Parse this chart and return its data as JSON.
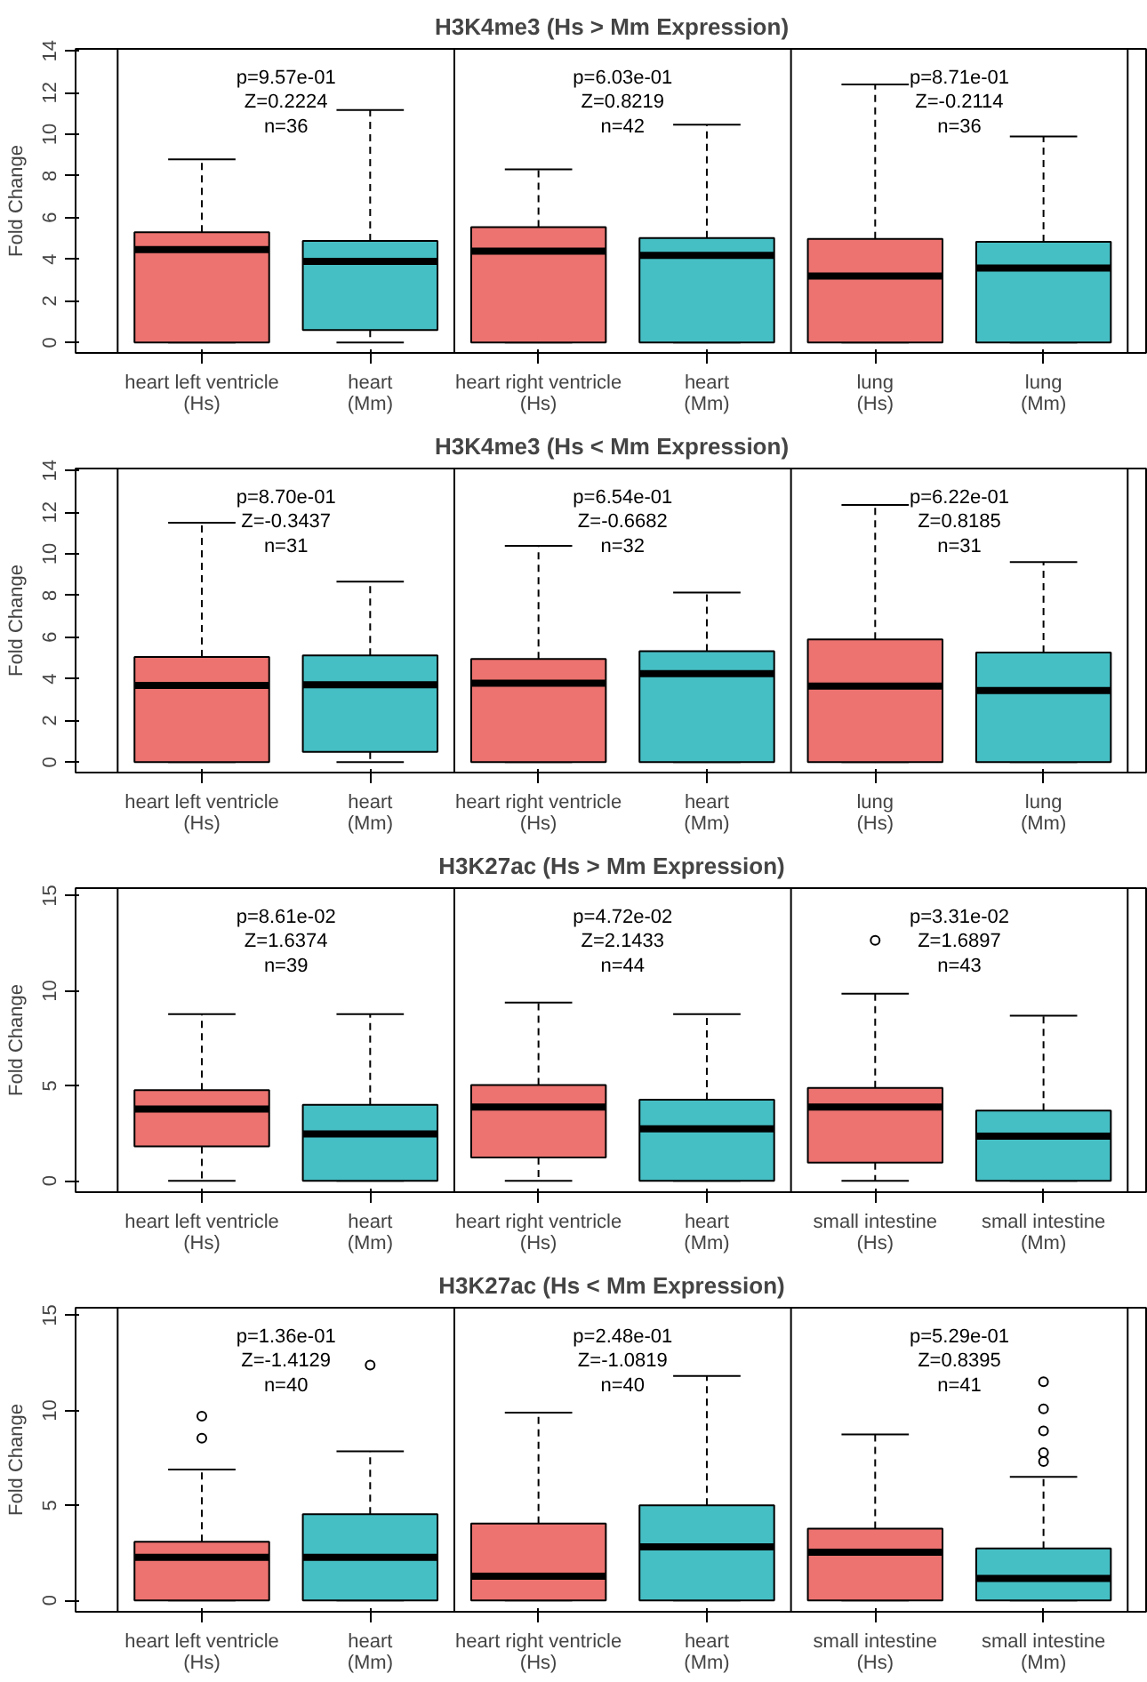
{
  "chart_data": [
    {
      "type": "box",
      "title": "H3K4me3 (Hs > Mm Expression)",
      "ylabel": "Fold Change",
      "ylim": [
        -0.5,
        14.1
      ],
      "yticks": [
        0,
        2,
        4,
        6,
        8,
        10,
        12,
        14
      ],
      "grid": false,
      "categories": [
        "heart left ventricle\n(Hs)",
        "heart\n(Mm)",
        "heart right ventricle\n(Hs)",
        "heart\n(Mm)",
        "lung\n(Hs)",
        "lung\n(Mm)"
      ],
      "colors": [
        "#ec7370",
        "#46bfc4",
        "#ec7370",
        "#46bfc4",
        "#ec7370",
        "#46bfc4"
      ],
      "boxes": [
        {
          "low": 0,
          "q1": 0,
          "median": 4.46,
          "q3": 5.3,
          "high": 8.8
        },
        {
          "low": 0,
          "q1": 0.6,
          "median": 3.9,
          "q3": 4.88,
          "high": 11.16
        },
        {
          "low": 0,
          "q1": 0,
          "median": 4.39,
          "q3": 5.54,
          "high": 8.32
        },
        {
          "low": 0,
          "q1": 0,
          "median": 4.18,
          "q3": 5.02,
          "high": 10.46
        },
        {
          "low": 0,
          "q1": 0,
          "median": 3.19,
          "q3": 4.98,
          "high": 12.39
        },
        {
          "low": 0,
          "q1": 0,
          "median": 3.58,
          "q3": 4.84,
          "high": 9.89
        }
      ],
      "annotations": [
        "p=9.57e-01\nZ=0.2224\nn=36",
        "p=6.03e-01\nZ=0.8219\nn=42",
        "p=8.71e-01\nZ=-0.2114\nn=36"
      ]
    },
    {
      "type": "box",
      "title": "H3K4me3 (Hs < Mm Expression)",
      "ylabel": "Fold Change",
      "ylim": [
        -0.5,
        14.1
      ],
      "yticks": [
        0,
        2,
        4,
        6,
        8,
        10,
        12,
        14
      ],
      "grid": false,
      "categories": [
        "heart left ventricle\n(Hs)",
        "heart\n(Mm)",
        "heart right ventricle\n(Hs)",
        "heart\n(Mm)",
        "lung\n(Hs)",
        "lung\n(Mm)"
      ],
      "colors": [
        "#ec7370",
        "#46bfc4",
        "#ec7370",
        "#46bfc4",
        "#ec7370",
        "#46bfc4"
      ],
      "boxes": [
        {
          "low": 0,
          "q1": 0,
          "median": 3.68,
          "q3": 5.05,
          "high": 11.5
        },
        {
          "low": 0,
          "q1": 0.49,
          "median": 3.72,
          "q3": 5.12,
          "high": 8.67
        },
        {
          "low": 0,
          "q1": 0,
          "median": 3.79,
          "q3": 4.95,
          "high": 10.39
        },
        {
          "low": 0,
          "q1": 0,
          "median": 4.25,
          "q3": 5.33,
          "high": 8.14
        },
        {
          "low": 0,
          "q1": 0,
          "median": 3.65,
          "q3": 5.89,
          "high": 12.35
        },
        {
          "low": 0,
          "q1": 0,
          "median": 3.44,
          "q3": 5.26,
          "high": 9.61
        }
      ],
      "annotations": [
        "p=8.70e-01\nZ=-0.3437\nn=31",
        "p=6.54e-01\nZ=-0.6682\nn=32",
        "p=6.22e-01\nZ=0.8185\nn=31"
      ]
    },
    {
      "type": "box",
      "title": "H3K27ac (Hs > Mm Expression)",
      "ylabel": "Fold Change",
      "ylim": [
        -0.6,
        15.4
      ],
      "yticks": [
        0,
        5,
        10,
        15
      ],
      "grid": false,
      "categories": [
        "heart left ventricle\n(Hs)",
        "heart\n(Mm)",
        "heart right ventricle\n(Hs)",
        "heart\n(Mm)",
        "small intestine\n(Hs)",
        "small intestine\n(Mm)"
      ],
      "colors": [
        "#ec7370",
        "#46bfc4",
        "#ec7370",
        "#46bfc4",
        "#ec7370",
        "#46bfc4"
      ],
      "boxes": [
        {
          "low": 0,
          "q1": 1.81,
          "median": 3.77,
          "q3": 4.77,
          "high": 8.77
        },
        {
          "low": 0,
          "q1": 0,
          "median": 2.46,
          "q3": 4.0,
          "high": 8.77
        },
        {
          "low": 0,
          "q1": 1.23,
          "median": 3.88,
          "q3": 5.04,
          "high": 9.38
        },
        {
          "low": 0,
          "q1": 0,
          "median": 2.73,
          "q3": 4.27,
          "high": 8.77
        },
        {
          "low": 0,
          "q1": 0.96,
          "median": 3.88,
          "q3": 4.88,
          "high": 9.85,
          "outliers": [
            12.65
          ]
        },
        {
          "low": 0,
          "q1": 0,
          "median": 2.35,
          "q3": 3.69,
          "high": 8.69
        }
      ],
      "annotations": [
        "p=8.61e-02\nZ=1.6374\nn=39",
        "p=4.72e-02\nZ=2.1433\nn=44",
        "p=3.31e-02\nZ=1.6897\nn=43"
      ]
    },
    {
      "type": "box",
      "title": "H3K27ac (Hs < Mm Expression)",
      "ylabel": "Fold Change",
      "ylim": [
        -0.6,
        15.4
      ],
      "yticks": [
        0,
        5,
        10,
        15
      ],
      "grid": false,
      "categories": [
        "heart left ventricle\n(Hs)",
        "heart\n(Mm)",
        "heart right ventricle\n(Hs)",
        "heart\n(Mm)",
        "small intestine\n(Hs)",
        "small intestine\n(Mm)"
      ],
      "colors": [
        "#ec7370",
        "#46bfc4",
        "#ec7370",
        "#46bfc4",
        "#ec7370",
        "#46bfc4"
      ],
      "boxes": [
        {
          "low": 0,
          "q1": 0,
          "median": 2.27,
          "q3": 3.08,
          "high": 6.88,
          "outliers": [
            8.54,
            9.69
          ]
        },
        {
          "low": 0,
          "q1": 0,
          "median": 2.27,
          "q3": 4.54,
          "high": 7.85,
          "outliers": [
            12.38
          ]
        },
        {
          "low": 0,
          "q1": 0,
          "median": 1.27,
          "q3": 4.04,
          "high": 9.88
        },
        {
          "low": 0,
          "q1": 0,
          "median": 2.81,
          "q3": 5.0,
          "high": 11.81
        },
        {
          "low": 0,
          "q1": 0,
          "median": 2.54,
          "q3": 3.77,
          "high": 8.73
        },
        {
          "low": 0,
          "q1": 0,
          "median": 1.15,
          "q3": 2.73,
          "high": 6.5,
          "outliers": [
            7.31,
            7.77,
            8.92,
            10.08,
            11.5
          ]
        }
      ],
      "annotations": [
        "p=1.36e-01\nZ=-1.4129\nn=40",
        "p=2.48e-01\nZ=-1.0819\nn=40",
        "p=5.29e-01\nZ=0.8395\nn=41"
      ]
    }
  ]
}
